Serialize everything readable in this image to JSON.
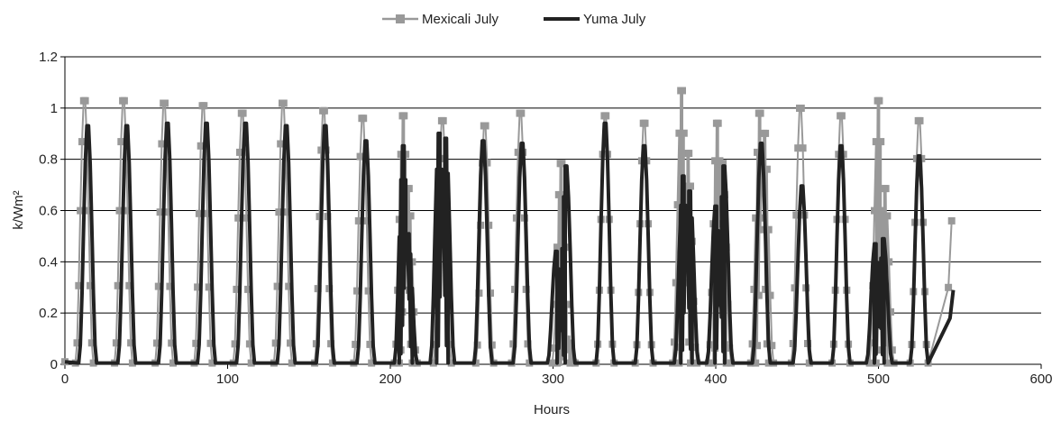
{
  "chart_data": {
    "type": "line",
    "title": "",
    "xlabel": "Hours",
    "ylabel": "k/Wm²",
    "xlim": [
      0,
      600
    ],
    "ylim": [
      0,
      1.2
    ],
    "xticks": [
      0,
      100,
      200,
      300,
      400,
      500,
      600
    ],
    "yticks": [
      0,
      0.2,
      0.4,
      0.6,
      0.8,
      1,
      1.2
    ],
    "xtick_labels": [
      "0",
      "100",
      "200",
      "300",
      "400",
      "500",
      "600"
    ],
    "ytick_labels": [
      "0",
      "0.2",
      "0.4",
      "0.6",
      "0.8",
      "1",
      "1.2"
    ],
    "grid": "horizontal",
    "legend_position": "top-center",
    "series": [
      {
        "name": "Mexicali July",
        "color": "#999999",
        "marker": "square",
        "peaks": [
          [
            12,
            1.05
          ],
          [
            36,
            1.05
          ],
          [
            61,
            1.04
          ],
          [
            85,
            1.03
          ],
          [
            109,
            1.0
          ],
          [
            134,
            1.04
          ],
          [
            159,
            1.01
          ],
          [
            183,
            0.98
          ],
          [
            208,
            0.99
          ],
          [
            211,
            0.7
          ],
          [
            232,
            0.97
          ],
          [
            258,
            0.95
          ],
          [
            280,
            1.0
          ],
          [
            305,
            0.8
          ],
          [
            308,
            0.1
          ],
          [
            332,
            0.99
          ],
          [
            356,
            0.96
          ],
          [
            379,
            1.09
          ],
          [
            383,
            0.84
          ],
          [
            401,
            0.96
          ],
          [
            404,
            0.8
          ],
          [
            427,
            1.0
          ],
          [
            430,
            0.92
          ],
          [
            452,
            1.02
          ],
          [
            477,
            0.99
          ],
          [
            500,
            1.05
          ],
          [
            504,
            0.7
          ],
          [
            525,
            0.97
          ]
        ],
        "tail": [
          [
            543,
            0.3
          ],
          [
            545,
            0.56
          ]
        ]
      },
      {
        "name": "Yuma July",
        "color": "#222222",
        "marker": "none",
        "peaks": [
          [
            14,
            0.95
          ],
          [
            38,
            0.95
          ],
          [
            63,
            0.96
          ],
          [
            87,
            0.96
          ],
          [
            111,
            0.96
          ],
          [
            136,
            0.95
          ],
          [
            160,
            0.95
          ],
          [
            185,
            0.89
          ],
          [
            208,
            0.87
          ],
          [
            211,
            0.52
          ],
          [
            230,
            0.92
          ],
          [
            234,
            0.9
          ],
          [
            257,
            0.89
          ],
          [
            281,
            0.88
          ],
          [
            302,
            0.45
          ],
          [
            308,
            0.79
          ],
          [
            332,
            0.96
          ],
          [
            356,
            0.87
          ],
          [
            380,
            0.75
          ],
          [
            384,
            0.69
          ],
          [
            400,
            0.63
          ],
          [
            405,
            0.79
          ],
          [
            428,
            0.88
          ],
          [
            453,
            0.71
          ],
          [
            477,
            0.87
          ],
          [
            498,
            0.48
          ],
          [
            503,
            0.5
          ],
          [
            525,
            0.83
          ]
        ],
        "tail": [
          [
            544,
            0.18
          ],
          [
            546,
            0.29
          ]
        ]
      }
    ]
  }
}
